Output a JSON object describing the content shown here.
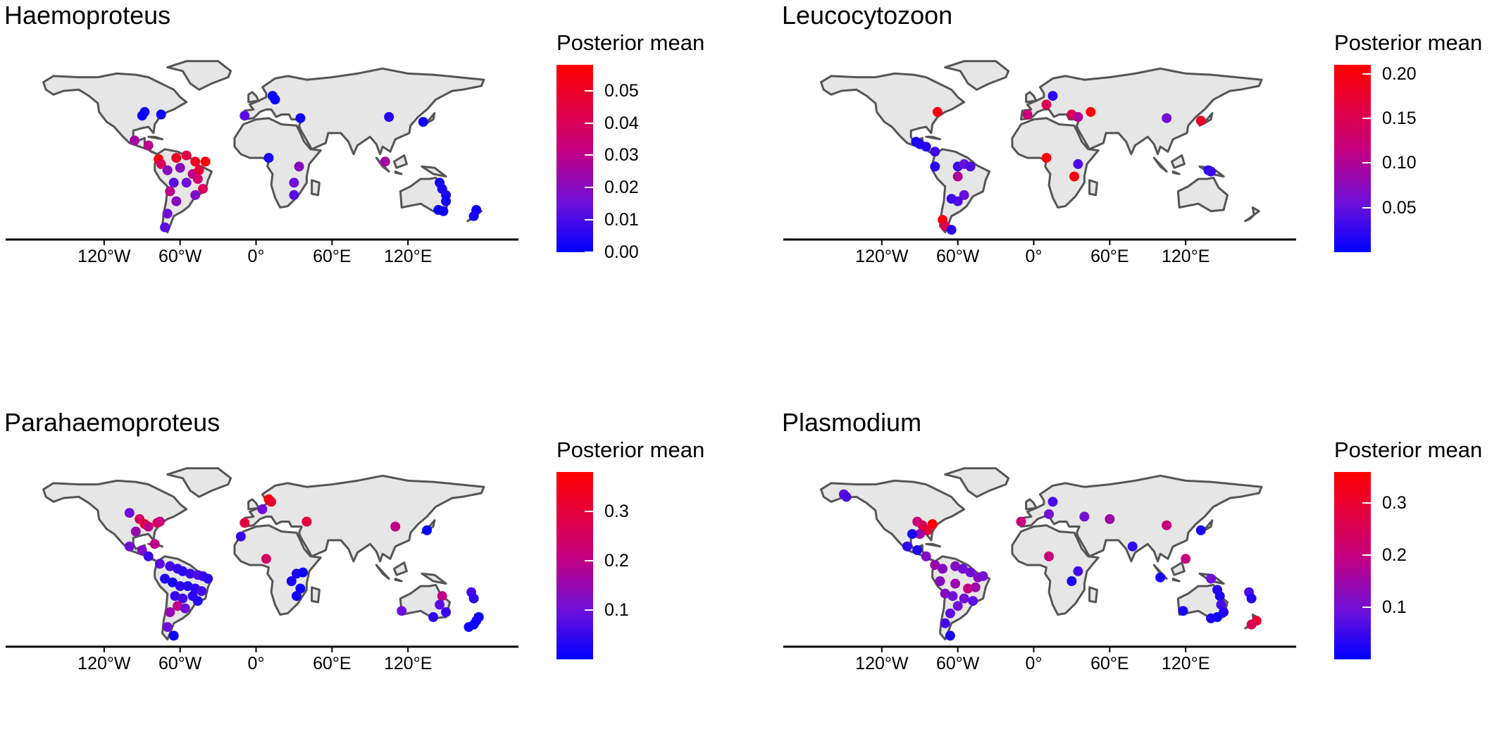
{
  "chart_data": [
    {
      "type": "scatter",
      "title": "Haemoproteus",
      "legend_title": "Posterior mean",
      "legend_ticks": [
        "0.05",
        "0.04",
        "0.03",
        "0.02",
        "0.01",
        "0.00"
      ],
      "legend_values": [
        0.05,
        0.04,
        0.03,
        0.02,
        0.01,
        0.0
      ],
      "color_range": [
        0.0,
        0.058
      ],
      "x_ticks": [
        "120°W",
        "60°W",
        "0°",
        "60°E",
        "120°E"
      ],
      "x_tick_values": [
        -120,
        -60,
        0,
        60,
        120
      ],
      "xlim": [
        -180,
        190
      ],
      "ylim": [
        -58,
        84
      ],
      "points": [
        {
          "lon": -88,
          "lat": 42,
          "v": 0.003
        },
        {
          "lon": -90,
          "lat": 39,
          "v": 0.001
        },
        {
          "lon": -75,
          "lat": 40,
          "v": 0.002
        },
        {
          "lon": -96,
          "lat": 19,
          "v": 0.025
        },
        {
          "lon": -85,
          "lat": 15,
          "v": 0.03
        },
        {
          "lon": -77,
          "lat": 4,
          "v": 0.055
        },
        {
          "lon": -75,
          "lat": 0,
          "v": 0.04
        },
        {
          "lon": -63,
          "lat": 5,
          "v": 0.05
        },
        {
          "lon": -55,
          "lat": 7,
          "v": 0.045
        },
        {
          "lon": -48,
          "lat": 2,
          "v": 0.05
        },
        {
          "lon": -40,
          "lat": 2,
          "v": 0.058
        },
        {
          "lon": -60,
          "lat": -3,
          "v": 0.02
        },
        {
          "lon": -70,
          "lat": -5,
          "v": 0.02
        },
        {
          "lon": -50,
          "lat": -8,
          "v": 0.03
        },
        {
          "lon": -45,
          "lat": -5,
          "v": 0.045
        },
        {
          "lon": -65,
          "lat": -15,
          "v": 0.012
        },
        {
          "lon": -55,
          "lat": -15,
          "v": 0.015
        },
        {
          "lon": -46,
          "lat": -12,
          "v": 0.035
        },
        {
          "lon": -42,
          "lat": -20,
          "v": 0.04
        },
        {
          "lon": -48,
          "lat": -25,
          "v": 0.018
        },
        {
          "lon": -68,
          "lat": -22,
          "v": 0.03
        },
        {
          "lon": -63,
          "lat": -30,
          "v": 0.02
        },
        {
          "lon": -70,
          "lat": -40,
          "v": 0.015
        },
        {
          "lon": -72,
          "lat": -51,
          "v": 0.012
        },
        {
          "lon": -9,
          "lat": 39,
          "v": 0.012
        },
        {
          "lon": 13,
          "lat": 55,
          "v": 0.002
        },
        {
          "lon": 15,
          "lat": 52,
          "v": 0.001
        },
        {
          "lon": 35,
          "lat": 37,
          "v": 0.002
        },
        {
          "lon": 10,
          "lat": 5,
          "v": 0.003
        },
        {
          "lon": 34,
          "lat": -2,
          "v": 0.02
        },
        {
          "lon": 30,
          "lat": -15,
          "v": 0.015
        },
        {
          "lon": 30,
          "lat": -25,
          "v": 0.012
        },
        {
          "lon": 105,
          "lat": 38,
          "v": 0.005
        },
        {
          "lon": 132,
          "lat": 34,
          "v": 0.003
        },
        {
          "lon": 102,
          "lat": 2,
          "v": 0.025
        },
        {
          "lon": 145,
          "lat": -15,
          "v": 0.002
        },
        {
          "lon": 147,
          "lat": -20,
          "v": 0.003
        },
        {
          "lon": 150,
          "lat": -25,
          "v": 0.004
        },
        {
          "lon": 150,
          "lat": -30,
          "v": 0.002
        },
        {
          "lon": 144,
          "lat": -37,
          "v": 0.001
        },
        {
          "lon": 148,
          "lat": -38,
          "v": 0.002
        },
        {
          "lon": 174,
          "lat": -37,
          "v": 0.002
        },
        {
          "lon": 172,
          "lat": -42,
          "v": 0.003
        }
      ]
    },
    {
      "type": "scatter",
      "title": "Leucocytozoon",
      "legend_title": "Posterior mean",
      "legend_ticks": [
        "0.20",
        "0.15",
        "0.10",
        "0.05"
      ],
      "legend_values": [
        0.2,
        0.15,
        0.1,
        0.05
      ],
      "color_range": [
        0.0,
        0.21
      ],
      "x_ticks": [
        "120°W",
        "60°W",
        "0°",
        "60°E",
        "120°E"
      ],
      "x_tick_values": [
        -120,
        -60,
        0,
        60,
        120
      ],
      "xlim": [
        -180,
        190
      ],
      "ylim": [
        -58,
        84
      ],
      "points": [
        {
          "lon": -93,
          "lat": 18,
          "v": 0.01
        },
        {
          "lon": -90,
          "lat": 16,
          "v": 0.015
        },
        {
          "lon": -85,
          "lat": 14,
          "v": 0.02
        },
        {
          "lon": -78,
          "lat": 10,
          "v": 0.03
        },
        {
          "lon": -76,
          "lat": 42,
          "v": 0.2
        },
        {
          "lon": -78,
          "lat": -2,
          "v": 0.02
        },
        {
          "lon": -60,
          "lat": -2,
          "v": 0.03
        },
        {
          "lon": -55,
          "lat": 0,
          "v": 0.05
        },
        {
          "lon": -50,
          "lat": -2,
          "v": 0.04
        },
        {
          "lon": -60,
          "lat": -10,
          "v": 0.1
        },
        {
          "lon": -55,
          "lat": -25,
          "v": 0.05
        },
        {
          "lon": -60,
          "lat": -30,
          "v": 0.04
        },
        {
          "lon": -65,
          "lat": -28,
          "v": 0.03
        },
        {
          "lon": -72,
          "lat": -45,
          "v": 0.2
        },
        {
          "lon": -70,
          "lat": -50,
          "v": 0.15
        },
        {
          "lon": -65,
          "lat": -53,
          "v": 0.02
        },
        {
          "lon": -5,
          "lat": 40,
          "v": 0.12
        },
        {
          "lon": 10,
          "lat": 48,
          "v": 0.15
        },
        {
          "lon": 15,
          "lat": 55,
          "v": 0.02
        },
        {
          "lon": 30,
          "lat": 40,
          "v": 0.15
        },
        {
          "lon": 45,
          "lat": 42,
          "v": 0.2
        },
        {
          "lon": 35,
          "lat": 38,
          "v": 0.1
        },
        {
          "lon": 10,
          "lat": 5,
          "v": 0.21
        },
        {
          "lon": 35,
          "lat": 0,
          "v": 0.04
        },
        {
          "lon": 32,
          "lat": -10,
          "v": 0.2
        },
        {
          "lon": 105,
          "lat": 37,
          "v": 0.06
        },
        {
          "lon": 132,
          "lat": 35,
          "v": 0.18
        },
        {
          "lon": 138,
          "lat": -5,
          "v": 0.02
        },
        {
          "lon": 140,
          "lat": -6,
          "v": 0.03
        }
      ]
    },
    {
      "type": "scatter",
      "title": "Parahaemoproteus",
      "legend_title": "Posterior mean",
      "legend_ticks": [
        "0.3",
        "0.2",
        "0.1"
      ],
      "legend_values": [
        0.3,
        0.2,
        0.1
      ],
      "color_range": [
        0.0,
        0.38
      ],
      "x_ticks": [
        "120°W",
        "60°W",
        "0°",
        "60°E",
        "120°E"
      ],
      "x_tick_values": [
        -120,
        -60,
        0,
        60,
        120
      ],
      "xlim": [
        -180,
        190
      ],
      "ylim": [
        -58,
        84
      ],
      "points": [
        {
          "lon": -100,
          "lat": 47,
          "v": 0.1
        },
        {
          "lon": -92,
          "lat": 42,
          "v": 0.25
        },
        {
          "lon": -88,
          "lat": 38,
          "v": 0.3
        },
        {
          "lon": -85,
          "lat": 36,
          "v": 0.2
        },
        {
          "lon": -78,
          "lat": 39,
          "v": 0.28
        },
        {
          "lon": -76,
          "lat": 40,
          "v": 0.22
        },
        {
          "lon": -95,
          "lat": 32,
          "v": 0.15
        },
        {
          "lon": -100,
          "lat": 20,
          "v": 0.1
        },
        {
          "lon": -90,
          "lat": 17,
          "v": 0.12
        },
        {
          "lon": -80,
          "lat": 22,
          "v": 0.2
        },
        {
          "lon": -85,
          "lat": 12,
          "v": 0.05
        },
        {
          "lon": -76,
          "lat": 6,
          "v": 0.08
        },
        {
          "lon": -68,
          "lat": 4,
          "v": 0.06
        },
        {
          "lon": -62,
          "lat": 2,
          "v": 0.05
        },
        {
          "lon": -58,
          "lat": 0,
          "v": 0.04
        },
        {
          "lon": -52,
          "lat": -2,
          "v": 0.05
        },
        {
          "lon": -46,
          "lat": -3,
          "v": 0.07
        },
        {
          "lon": -42,
          "lat": -4,
          "v": 0.05
        },
        {
          "lon": -38,
          "lat": -6,
          "v": 0.04
        },
        {
          "lon": -72,
          "lat": -6,
          "v": 0.03
        },
        {
          "lon": -66,
          "lat": -9,
          "v": 0.02
        },
        {
          "lon": -60,
          "lat": -12,
          "v": 0.04
        },
        {
          "lon": -54,
          "lat": -12,
          "v": 0.03
        },
        {
          "lon": -48,
          "lat": -14,
          "v": 0.04
        },
        {
          "lon": -43,
          "lat": -16,
          "v": 0.06
        },
        {
          "lon": -64,
          "lat": -20,
          "v": 0.05
        },
        {
          "lon": -58,
          "lat": -22,
          "v": 0.06
        },
        {
          "lon": -50,
          "lat": -20,
          "v": 0.04
        },
        {
          "lon": -46,
          "lat": -24,
          "v": 0.03
        },
        {
          "lon": -62,
          "lat": -28,
          "v": 0.2
        },
        {
          "lon": -56,
          "lat": -30,
          "v": 0.1
        },
        {
          "lon": -68,
          "lat": -33,
          "v": 0.15
        },
        {
          "lon": -70,
          "lat": -45,
          "v": 0.1
        },
        {
          "lon": -65,
          "lat": -52,
          "v": 0.01
        },
        {
          "lon": -9,
          "lat": 39,
          "v": 0.3
        },
        {
          "lon": -12,
          "lat": 28,
          "v": 0.05
        },
        {
          "lon": 10,
          "lat": 58,
          "v": 0.38
        },
        {
          "lon": 12,
          "lat": 56,
          "v": 0.32
        },
        {
          "lon": 5,
          "lat": 50,
          "v": 0.1
        },
        {
          "lon": 40,
          "lat": 40,
          "v": 0.3
        },
        {
          "lon": 8,
          "lat": 10,
          "v": 0.25
        },
        {
          "lon": 32,
          "lat": -2,
          "v": 0.02
        },
        {
          "lon": 37,
          "lat": -1,
          "v": 0.01
        },
        {
          "lon": 28,
          "lat": -8,
          "v": 0.02
        },
        {
          "lon": 35,
          "lat": -14,
          "v": 0.01
        },
        {
          "lon": 32,
          "lat": -20,
          "v": 0.02
        },
        {
          "lon": 110,
          "lat": 36,
          "v": 0.2
        },
        {
          "lon": 135,
          "lat": 33,
          "v": 0.01
        },
        {
          "lon": 147,
          "lat": -20,
          "v": 0.2
        },
        {
          "lon": 145,
          "lat": -27,
          "v": 0.08
        },
        {
          "lon": 150,
          "lat": -33,
          "v": 0.05
        },
        {
          "lon": 140,
          "lat": -37,
          "v": 0.04
        },
        {
          "lon": 115,
          "lat": -32,
          "v": 0.1
        },
        {
          "lon": 170,
          "lat": -17,
          "v": 0.06
        },
        {
          "lon": 172,
          "lat": -22,
          "v": 0.04
        },
        {
          "lon": 176,
          "lat": -37,
          "v": 0.01
        },
        {
          "lon": 174,
          "lat": -40,
          "v": 0.02
        },
        {
          "lon": 172,
          "lat": -43,
          "v": 0.01
        },
        {
          "lon": 168,
          "lat": -45,
          "v": 0.01
        }
      ]
    },
    {
      "type": "scatter",
      "title": "Plasmodium",
      "legend_title": "Posterior mean",
      "legend_ticks": [
        "0.3",
        "0.2",
        "0.1"
      ],
      "legend_values": [
        0.3,
        0.2,
        0.1
      ],
      "color_range": [
        0.0,
        0.36
      ],
      "x_ticks": [
        "120°W",
        "60°W",
        "0°",
        "60°E",
        "120°E"
      ],
      "x_tick_values": [
        -120,
        -60,
        0,
        60,
        120
      ],
      "xlim": [
        -180,
        190
      ],
      "ylim": [
        -58,
        84
      ],
      "points": [
        {
          "lon": -150,
          "lat": 62,
          "v": 0.08
        },
        {
          "lon": -148,
          "lat": 60,
          "v": 0.06
        },
        {
          "lon": -92,
          "lat": 40,
          "v": 0.2
        },
        {
          "lon": -88,
          "lat": 37,
          "v": 0.25
        },
        {
          "lon": -80,
          "lat": 38,
          "v": 0.36
        },
        {
          "lon": -84,
          "lat": 33,
          "v": 0.3
        },
        {
          "lon": -90,
          "lat": 30,
          "v": 0.15
        },
        {
          "lon": -96,
          "lat": 30,
          "v": 0.02
        },
        {
          "lon": -100,
          "lat": 20,
          "v": 0.04
        },
        {
          "lon": -92,
          "lat": 17,
          "v": 0.03
        },
        {
          "lon": -85,
          "lat": 12,
          "v": 0.12
        },
        {
          "lon": -78,
          "lat": 5,
          "v": 0.15
        },
        {
          "lon": -72,
          "lat": 2,
          "v": 0.12
        },
        {
          "lon": -62,
          "lat": 4,
          "v": 0.12
        },
        {
          "lon": -56,
          "lat": 2,
          "v": 0.1
        },
        {
          "lon": -50,
          "lat": -1,
          "v": 0.1
        },
        {
          "lon": -44,
          "lat": -5,
          "v": 0.12
        },
        {
          "lon": -40,
          "lat": -4,
          "v": 0.1
        },
        {
          "lon": -74,
          "lat": -8,
          "v": 0.12
        },
        {
          "lon": -62,
          "lat": -10,
          "v": 0.15
        },
        {
          "lon": -52,
          "lat": -14,
          "v": 0.2
        },
        {
          "lon": -46,
          "lat": -13,
          "v": 0.15
        },
        {
          "lon": -70,
          "lat": -18,
          "v": 0.12
        },
        {
          "lon": -64,
          "lat": -20,
          "v": 0.1
        },
        {
          "lon": -55,
          "lat": -22,
          "v": 0.1
        },
        {
          "lon": -48,
          "lat": -24,
          "v": 0.08
        },
        {
          "lon": -60,
          "lat": -28,
          "v": 0.1
        },
        {
          "lon": -66,
          "lat": -34,
          "v": 0.08
        },
        {
          "lon": -70,
          "lat": -42,
          "v": 0.06
        },
        {
          "lon": -66,
          "lat": -52,
          "v": 0.02
        },
        {
          "lon": -10,
          "lat": 40,
          "v": 0.2
        },
        {
          "lon": 15,
          "lat": 56,
          "v": 0.06
        },
        {
          "lon": 12,
          "lat": 46,
          "v": 0.1
        },
        {
          "lon": 40,
          "lat": 44,
          "v": 0.1
        },
        {
          "lon": 60,
          "lat": 42,
          "v": 0.15
        },
        {
          "lon": 12,
          "lat": 12,
          "v": 0.2
        },
        {
          "lon": 35,
          "lat": 0,
          "v": 0.06
        },
        {
          "lon": 30,
          "lat": -8,
          "v": 0.02
        },
        {
          "lon": 105,
          "lat": 37,
          "v": 0.2
        },
        {
          "lon": 132,
          "lat": 33,
          "v": 0.02
        },
        {
          "lon": 78,
          "lat": 20,
          "v": 0.04
        },
        {
          "lon": 120,
          "lat": 10,
          "v": 0.2
        },
        {
          "lon": 100,
          "lat": -5,
          "v": 0.02
        },
        {
          "lon": 140,
          "lat": -6,
          "v": 0.1
        },
        {
          "lon": 145,
          "lat": -15,
          "v": 0.03
        },
        {
          "lon": 147,
          "lat": -20,
          "v": 0.02
        },
        {
          "lon": 148,
          "lat": -27,
          "v": 0.06
        },
        {
          "lon": 150,
          "lat": -33,
          "v": 0.03
        },
        {
          "lon": 145,
          "lat": -37,
          "v": 0.01
        },
        {
          "lon": 140,
          "lat": -38,
          "v": 0.02
        },
        {
          "lon": 118,
          "lat": -32,
          "v": 0.02
        },
        {
          "lon": 170,
          "lat": -17,
          "v": 0.06
        },
        {
          "lon": 172,
          "lat": -22,
          "v": 0.03
        },
        {
          "lon": 176,
          "lat": -40,
          "v": 0.3
        },
        {
          "lon": 172,
          "lat": -43,
          "v": 0.25
        }
      ]
    }
  ]
}
